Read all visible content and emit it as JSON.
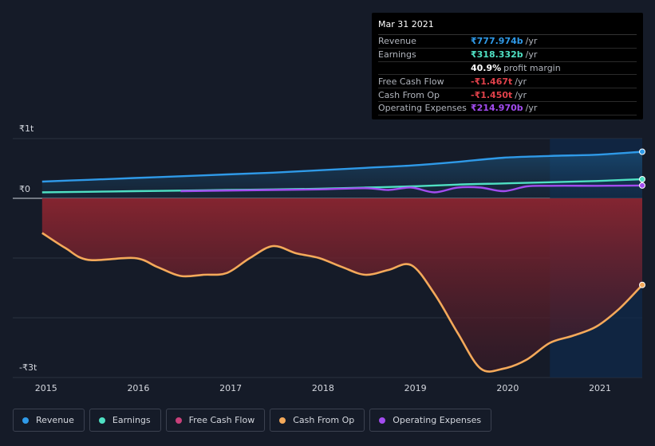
{
  "tooltip": {
    "date": "Mar 31 2021",
    "rows": [
      {
        "label": "Revenue",
        "value": "₹777.974b",
        "unit": "/yr",
        "color": "#2f9ae8"
      },
      {
        "label": "Earnings",
        "value": "₹318.332b",
        "unit": "/yr",
        "color": "#4fe0c3"
      },
      {
        "label": "",
        "value": "40.9%",
        "unit": "profit margin",
        "color": "#ffffff"
      },
      {
        "label": "Free Cash Flow",
        "value": "-₹1.467t",
        "unit": "/yr",
        "color": "#e0414a"
      },
      {
        "label": "Cash From Op",
        "value": "-₹1.450t",
        "unit": "/yr",
        "color": "#e0414a"
      },
      {
        "label": "Operating Expenses",
        "value": "₹214.970b",
        "unit": "/yr",
        "color": "#a34cf0"
      }
    ]
  },
  "legend": [
    {
      "label": "Revenue",
      "color": "#2f9ae8"
    },
    {
      "label": "Earnings",
      "color": "#4fe0c3"
    },
    {
      "label": "Free Cash Flow",
      "color": "#c8407a"
    },
    {
      "label": "Cash From Op",
      "color": "#f4a95a"
    },
    {
      "label": "Operating Expenses",
      "color": "#a34cf0"
    }
  ],
  "chart_data": {
    "type": "line",
    "y_unit": "INR trillions",
    "ylim": [
      -3,
      1
    ],
    "xlim": [
      2014.7,
      2021.25
    ],
    "y_tick_labels": [
      {
        "value": 1,
        "label": "₹1t"
      },
      {
        "value": 0,
        "label": "₹0"
      },
      {
        "value": -3,
        "label": "-₹3t"
      }
    ],
    "x_ticks": [
      2015,
      2016,
      2017,
      2018,
      2019,
      2020,
      2021
    ],
    "x_tick_labels": [
      "2015",
      "2016",
      "2017",
      "2018",
      "2019",
      "2020",
      "2021"
    ],
    "forecast_start": 2020.25,
    "series": [
      {
        "name": "Revenue",
        "color": "#2f9ae8",
        "area": true,
        "x": [
          2014.75,
          2015.25,
          2015.75,
          2016.25,
          2016.75,
          2017.25,
          2017.75,
          2018.25,
          2018.75,
          2019.25,
          2019.75,
          2020.25,
          2020.75,
          2021.25
        ],
        "y": [
          0.28,
          0.31,
          0.34,
          0.37,
          0.4,
          0.43,
          0.47,
          0.51,
          0.55,
          0.61,
          0.68,
          0.71,
          0.73,
          0.78
        ]
      },
      {
        "name": "Earnings",
        "color": "#4fe0c3",
        "area": false,
        "x": [
          2014.75,
          2015.25,
          2015.75,
          2016.25,
          2016.75,
          2017.25,
          2017.75,
          2018.25,
          2018.75,
          2019.25,
          2019.75,
          2020.25,
          2020.75,
          2021.25
        ],
        "y": [
          0.1,
          0.11,
          0.12,
          0.13,
          0.14,
          0.15,
          0.16,
          0.18,
          0.2,
          0.23,
          0.25,
          0.27,
          0.29,
          0.32
        ]
      },
      {
        "name": "Operating Expenses",
        "color": "#a34cf0",
        "area": false,
        "x": [
          2016.25,
          2016.75,
          2017.25,
          2017.75,
          2018.25,
          2018.5,
          2018.75,
          2019.0,
          2019.25,
          2019.5,
          2019.75,
          2020.0,
          2020.25,
          2020.75,
          2021.25
        ],
        "y": [
          0.12,
          0.13,
          0.14,
          0.15,
          0.17,
          0.14,
          0.18,
          0.1,
          0.18,
          0.18,
          0.12,
          0.2,
          0.21,
          0.21,
          0.215
        ]
      },
      {
        "name": "Cash From Op",
        "color": "#f4a95a",
        "area": true,
        "x": [
          2014.75,
          2015.0,
          2015.25,
          2015.75,
          2016.0,
          2016.25,
          2016.5,
          2016.75,
          2017.0,
          2017.25,
          2017.5,
          2017.75,
          2018.0,
          2018.25,
          2018.5,
          2018.75,
          2019.0,
          2019.25,
          2019.5,
          2019.75,
          2020.0,
          2020.25,
          2020.5,
          2020.75,
          2021.0,
          2021.25
        ],
        "y": [
          -0.58,
          -0.83,
          -1.03,
          -1.0,
          -1.15,
          -1.3,
          -1.28,
          -1.25,
          -1.0,
          -0.8,
          -0.92,
          -1.0,
          -1.15,
          -1.28,
          -1.2,
          -1.12,
          -1.6,
          -2.25,
          -2.85,
          -2.85,
          -2.7,
          -2.42,
          -2.3,
          -2.15,
          -1.85,
          -1.45
        ]
      }
    ]
  }
}
